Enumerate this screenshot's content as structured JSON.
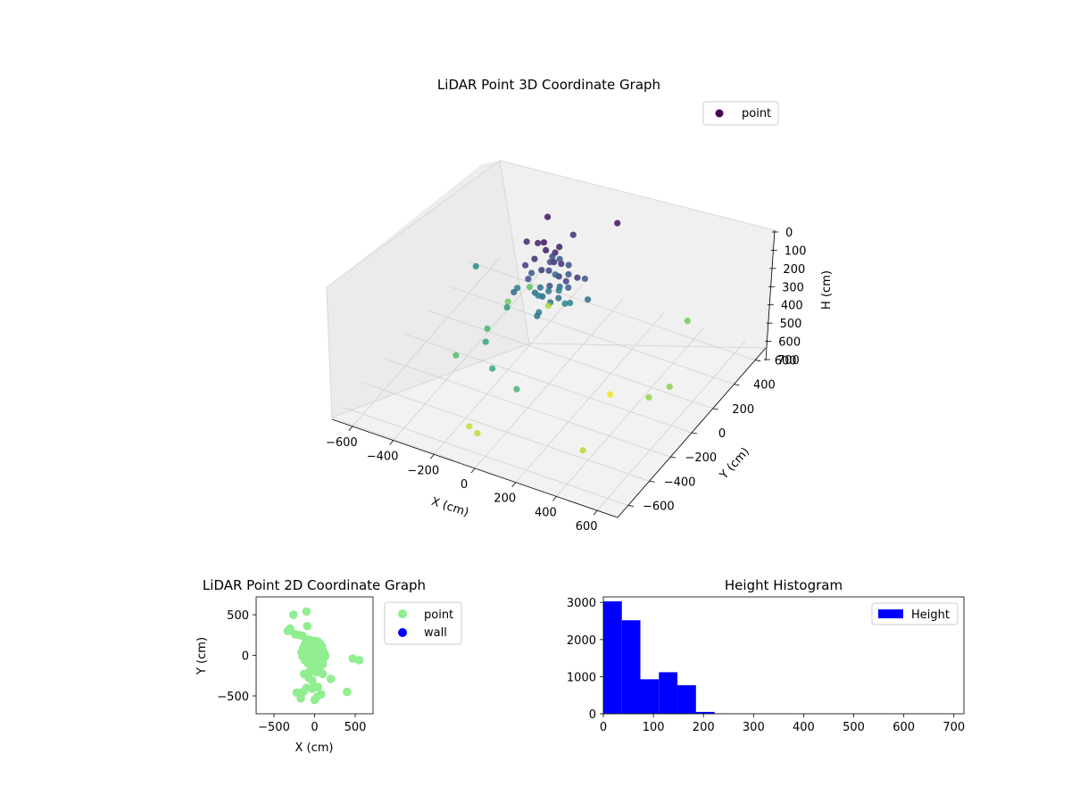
{
  "figure": {
    "background": "#ffffff"
  },
  "chart_data": [
    {
      "type": "scatter",
      "projection": "3d",
      "title": "LiDAR Point 3D Coordinate Graph",
      "xlabel": "X (cm)",
      "ylabel": "Y (cm)",
      "zlabel": "H (cm)",
      "xlim": [
        -700,
        700
      ],
      "ylim": [
        -700,
        700
      ],
      "zlim": [
        0,
        720
      ],
      "zaxis_inverted": true,
      "xticks": [
        "−600",
        "−400",
        "−200",
        "0",
        "200",
        "400",
        "600"
      ],
      "yticks": [
        "−600",
        "−400",
        "−200",
        "0",
        "200",
        "400",
        "600"
      ],
      "zticks": [
        "0",
        "100",
        "200",
        "300",
        "400",
        "500",
        "600",
        "700"
      ],
      "colormap": "viridis",
      "legend": {
        "position": "upper-right",
        "entries": [
          "point"
        ]
      },
      "series": [
        {
          "name": "point",
          "color": "#440154",
          "points": [
            [
              -40,
              30,
              40
            ],
            [
              -20,
              10,
              60
            ],
            [
              10,
              40,
              80
            ],
            [
              30,
              -10,
              90
            ],
            [
              -60,
              -20,
              100
            ],
            [
              50,
              20,
              110
            ],
            [
              -10,
              -50,
              120
            ],
            [
              20,
              60,
              60
            ],
            [
              -80,
              50,
              70
            ],
            [
              70,
              -40,
              130
            ],
            [
              0,
              0,
              150
            ],
            [
              -30,
              70,
              160
            ],
            [
              40,
              -70,
              170
            ],
            [
              -70,
              -60,
              180
            ],
            [
              60,
              70,
              190
            ],
            [
              -90,
              10,
              200
            ],
            [
              90,
              10,
              210
            ],
            [
              15,
              -90,
              220
            ],
            [
              -15,
              90,
              230
            ],
            [
              35,
              35,
              240
            ],
            [
              -45,
              -45,
              250
            ],
            [
              55,
              -15,
              260
            ],
            [
              -55,
              25,
              270
            ],
            [
              25,
              -35,
              280
            ],
            [
              -25,
              45,
              290
            ],
            [
              5,
              85,
              300
            ],
            [
              -5,
              -85,
              310
            ],
            [
              75,
              55,
              320
            ],
            [
              -75,
              45,
              330
            ],
            [
              45,
              65,
              340
            ],
            [
              -100,
              -30,
              140
            ],
            [
              100,
              -30,
              150
            ],
            [
              -40,
              110,
              160
            ],
            [
              40,
              110,
              175
            ],
            [
              -140,
              60,
              90
            ],
            [
              150,
              -20,
              120
            ],
            [
              -120,
              -100,
              240
            ],
            [
              130,
              90,
              200
            ],
            [
              -160,
              10,
              300
            ],
            [
              170,
              40,
              260
            ],
            [
              20,
              -150,
              280
            ],
            [
              -30,
              160,
              200
            ],
            [
              -250,
              -100,
              470
            ],
            [
              -180,
              -250,
              420
            ],
            [
              -300,
              -300,
              500
            ],
            [
              -320,
              230,
              560
            ],
            [
              -260,
              320,
              520
            ],
            [
              60,
              -420,
              470
            ],
            [
              -80,
              -380,
              440
            ],
            [
              500,
              -20,
              600
            ],
            [
              550,
              80,
              590
            ],
            [
              -120,
              -520,
              660
            ],
            [
              -60,
              -560,
              650
            ],
            [
              400,
              -450,
              640
            ],
            [
              -200,
              380,
              630
            ],
            [
              280,
              40,
              700
            ],
            [
              180,
              300,
              30
            ],
            [
              -110,
              200,
              40
            ],
            [
              0,
              230,
              110
            ],
            [
              -200,
              -10,
              400
            ],
            [
              420,
              500,
              560
            ],
            [
              -420,
              120,
              350
            ]
          ]
        }
      ]
    },
    {
      "type": "scatter",
      "title": "LiDAR Point 2D Coordinate Graph",
      "xlabel": "X (cm)",
      "ylabel": "Y (cm)",
      "xlim": [
        -720,
        720
      ],
      "ylim": [
        -720,
        720
      ],
      "xticks": [
        -500,
        0,
        500
      ],
      "yticks": [
        -500,
        0,
        500
      ],
      "legend": {
        "position": "outside-right",
        "entries": [
          "point",
          "wall"
        ]
      },
      "series": [
        {
          "name": "point",
          "color": "#90ee90",
          "points": [
            [
              -100,
              540
            ],
            [
              -260,
              500
            ],
            [
              -90,
              360
            ],
            [
              -300,
              330
            ],
            [
              -330,
              300
            ],
            [
              -240,
              260
            ],
            [
              -190,
              250
            ],
            [
              -150,
              240
            ],
            [
              -110,
              200
            ],
            [
              -60,
              190
            ],
            [
              0,
              180
            ],
            [
              40,
              170
            ],
            [
              -80,
              150
            ],
            [
              -120,
              130
            ],
            [
              70,
              140
            ],
            [
              -40,
              120
            ],
            [
              20,
              110
            ],
            [
              90,
              110
            ],
            [
              -140,
              90
            ],
            [
              -90,
              80
            ],
            [
              -30,
              90
            ],
            [
              40,
              80
            ],
            [
              100,
              70
            ],
            [
              -160,
              40
            ],
            [
              -110,
              30
            ],
            [
              -50,
              40
            ],
            [
              10,
              30
            ],
            [
              60,
              40
            ],
            [
              120,
              20
            ],
            [
              -150,
              -10
            ],
            [
              -90,
              -20
            ],
            [
              -30,
              0
            ],
            [
              30,
              -10
            ],
            [
              80,
              0
            ],
            [
              130,
              -10
            ],
            [
              -120,
              -60
            ],
            [
              -60,
              -60
            ],
            [
              0,
              -50
            ],
            [
              50,
              -60
            ],
            [
              100,
              -50
            ],
            [
              -80,
              -100
            ],
            [
              -20,
              -110
            ],
            [
              40,
              -100
            ],
            [
              100,
              -110
            ],
            [
              -10,
              -170
            ],
            [
              60,
              -160
            ],
            [
              -130,
              -230
            ],
            [
              -60,
              -200
            ],
            [
              20,
              -210
            ],
            [
              100,
              -230
            ],
            [
              -70,
              -280
            ],
            [
              -30,
              -310
            ],
            [
              200,
              -290
            ],
            [
              470,
              -40
            ],
            [
              550,
              -60
            ],
            [
              -30,
              -410
            ],
            [
              10,
              -390
            ],
            [
              40,
              -390
            ],
            [
              -100,
              -400
            ],
            [
              -220,
              -460
            ],
            [
              -170,
              -530
            ],
            [
              400,
              -450
            ],
            [
              80,
              -480
            ],
            [
              30,
              -510
            ],
            [
              0,
              -550
            ],
            [
              -140,
              -450
            ]
          ]
        },
        {
          "name": "wall",
          "color": "#0000ff",
          "points": []
        }
      ]
    },
    {
      "type": "bar",
      "subtype": "histogram",
      "title": "Height Histogram",
      "legend": {
        "position": "upper-right",
        "entries": [
          "Height"
        ]
      },
      "xlim": [
        0,
        720
      ],
      "ylim": [
        0,
        3150
      ],
      "xticks": [
        0,
        100,
        200,
        300,
        400,
        500,
        600,
        700
      ],
      "yticks": [
        0,
        1000,
        2000,
        3000
      ],
      "series": [
        {
          "name": "Height",
          "color": "#0000ff",
          "bin_edges": [
            0,
            37,
            74,
            111,
            148,
            185,
            222,
            259,
            296,
            333,
            370,
            407,
            444,
            481,
            518,
            555,
            592,
            629,
            666,
            703,
            720
          ],
          "counts": [
            3030,
            2520,
            930,
            1120,
            770,
            50,
            6,
            4,
            3,
            3,
            2,
            4,
            3,
            2,
            3,
            2,
            4,
            3,
            2,
            1
          ]
        }
      ]
    }
  ]
}
